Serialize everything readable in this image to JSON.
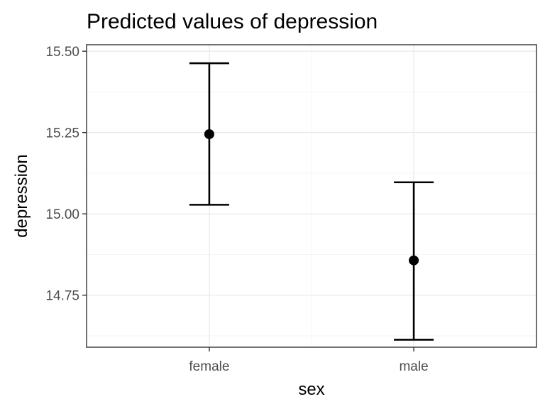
{
  "chart_data": {
    "type": "scatter",
    "title": "Predicted values of depression",
    "xlabel": "sex",
    "ylabel": "depression",
    "categories": [
      "female",
      "male"
    ],
    "series": [
      {
        "values": [
          15.245,
          14.857
        ],
        "ci_low": [
          15.028,
          14.613
        ],
        "ci_high": [
          15.463,
          15.097
        ]
      }
    ],
    "ylim": [
      14.59,
      15.52
    ],
    "y_ticks": [
      14.75,
      15.0,
      15.25,
      15.5
    ],
    "y_tick_labels": [
      "14.75",
      "15.00",
      "15.25",
      "15.50"
    ],
    "grid": true,
    "colors": {
      "point": "#000000",
      "errorbar": "#000000",
      "grid": "#ebebeb",
      "border": "#333333"
    }
  }
}
